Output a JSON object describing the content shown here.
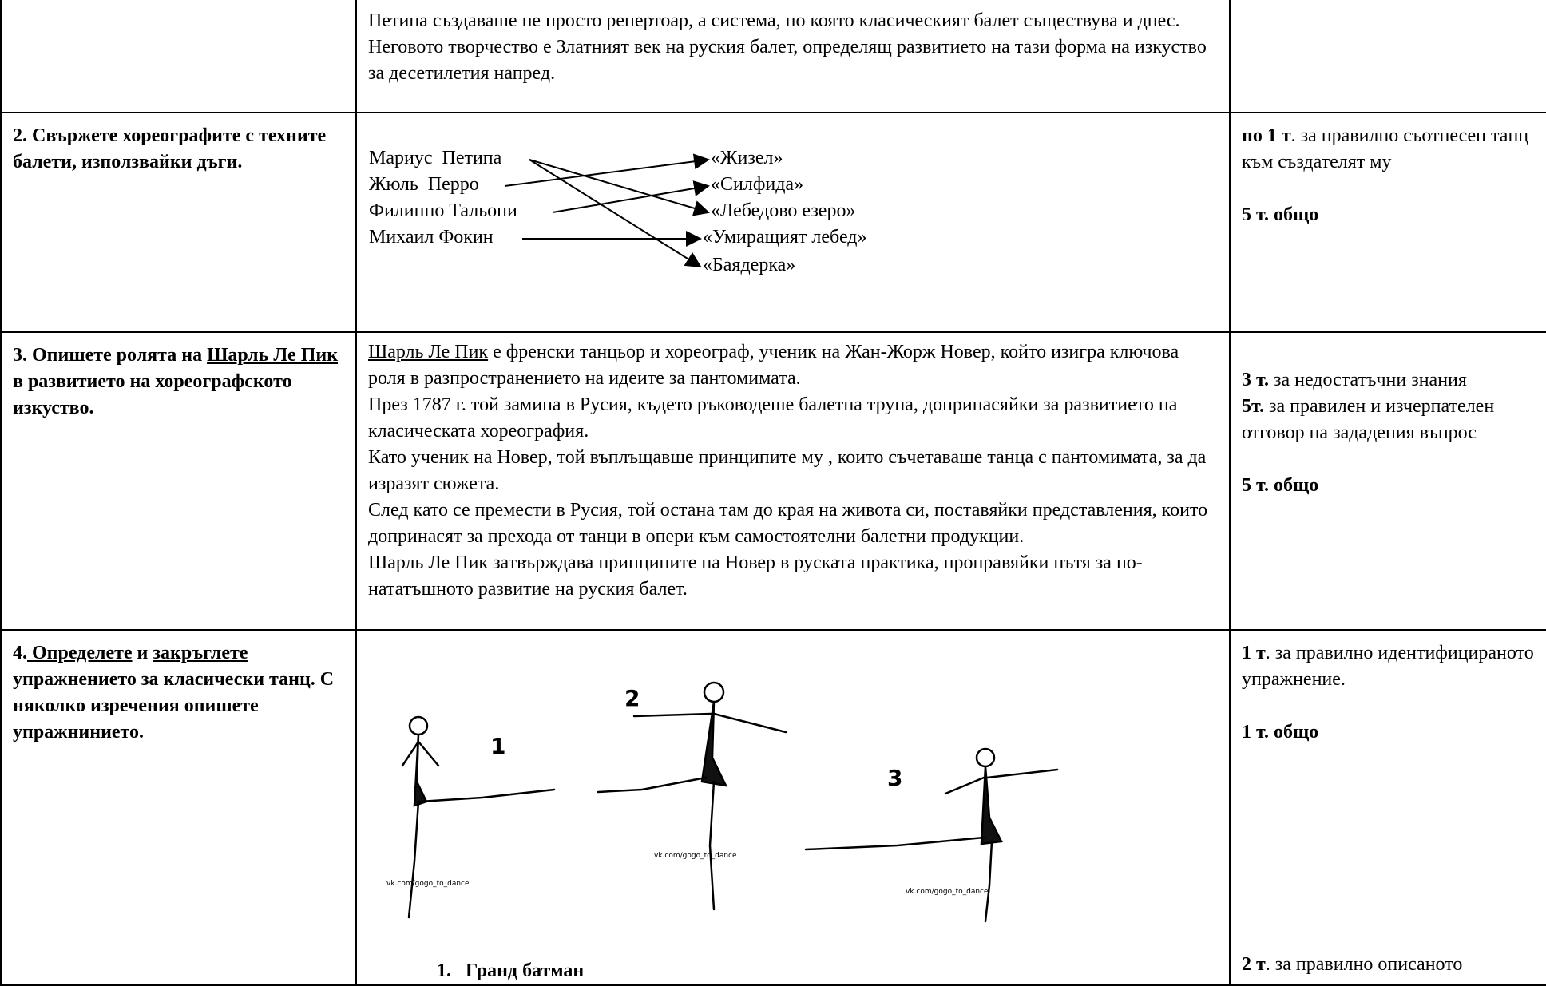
{
  "rows": [
    {
      "answer": "Петипа създаваше не просто репертоар, а система, по която класическият балет съществува и днес. Неговото творчество е Златният век на руския балет, определящ развитието на тази форма на изкуство за десетилетия напред."
    },
    {
      "question": "2. Свържете хореографите с техните балети, използвайки дъги.",
      "choreographers": [
        "Мариус  Петипа",
        "Жюль  Перро",
        "Филиппо Тальони",
        "Михаил Фокин"
      ],
      "ballets": [
        "«Жизел»",
        "«Силфида»",
        "«Лебедово езеро»",
        "«Умиращият лебед»",
        "«Баядерка»"
      ],
      "score": [
        "по 1 т",
        ". за правилно съотнесен танц  към създателят му",
        "5 т. общо"
      ]
    },
    {
      "question": [
        "3. Опишете ролята на ",
        "Шарль Ле Пик",
        " в развитието на хореографското изкуство."
      ],
      "answer": [
        [
          "Шарль Ле Пик",
          " е френски танцьор и хореограф, ученик на Жан-Жорж Новер, който изигра  ключова роля в разпространението на идеите за пантомимата."
        ],
        "През 1787 г. той замина в Русия, където ръководеше балетна трупа, допринасяйки за развитието на класическата хореография.",
        "Като ученик на Новер, той въплъщавше  принципите му , които съчетаваше танца с пантомимата, за да изразят сюжета.",
        "След като се премести в Русия, той остана там до края на живота си, поставяйки представления, които допринасят за прехода от танци в опери към самостоятелни балетни продукции.",
        "Шарль Ле Пик затвърждава принципите на Новер в руската практика, проправяйки пътя за по-нататъшното развитие на руския балет."
      ],
      "score": [
        "3 т.",
        " за недостатъчни знания",
        "5т.",
        " за правилен и изчерпателен отговор на зададения въпрос",
        "5 т. общо"
      ]
    },
    {
      "question": [
        "4.",
        " Определете",
        " и ",
        "закръглете",
        " упражнението за класически танц. С няколко изречения опишете упражнинието."
      ],
      "figure": {
        "labels": [
          "1",
          "2",
          "3"
        ],
        "watermarks": [
          "vk.com/gogo_to_dance",
          "vk.com/gogo_to_dance",
          "vk.com/gogo_to_dance"
        ]
      },
      "answer": {
        "number": "1.",
        "text": "Гранд батман"
      },
      "score": [
        "1 т",
        ". за правилно идентифицираното упражнение.",
        "1 т. общо",
        "2 т",
        ". за правилно описаното"
      ]
    }
  ]
}
